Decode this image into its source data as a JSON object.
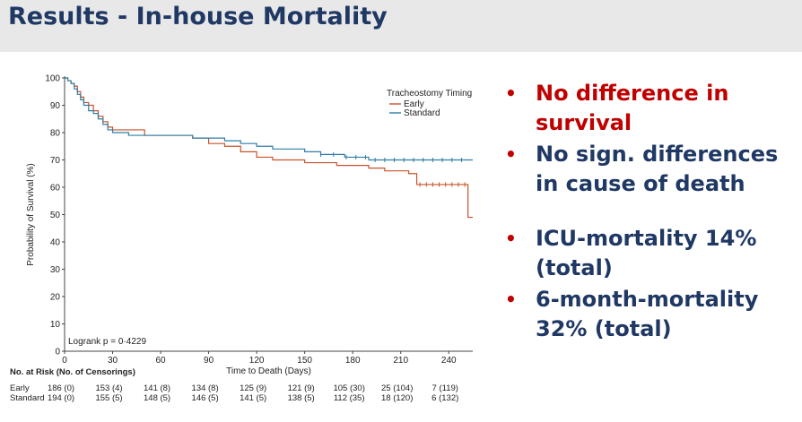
{
  "slide": {
    "title": "Results - In-house Mortality"
  },
  "bullets": [
    {
      "text": "No difference in survival",
      "color": "#c00000"
    },
    {
      "text": "No sign. differences in cause of death",
      "color": "#1f3864"
    },
    {
      "text": "ICU-mortality 14% (total)",
      "color": "#1f3864"
    },
    {
      "text": "6-month-mortality 32% (total)",
      "color": "#1f3864"
    }
  ],
  "chart_data": {
    "type": "line",
    "subtype": "kaplan-meier",
    "title": "",
    "xlabel": "Time to Death (Days)",
    "ylabel": "Probability of Survival (%)",
    "xlim": [
      0,
      255
    ],
    "ylim": [
      0,
      100
    ],
    "x_ticks": [
      0,
      30,
      60,
      90,
      120,
      150,
      180,
      210,
      240
    ],
    "y_ticks": [
      0,
      10,
      20,
      30,
      40,
      50,
      60,
      70,
      80,
      90,
      100
    ],
    "legend": {
      "title": "Tracheostomy Timing",
      "placement": "top-right"
    },
    "annotation": "Logrank p = 0·4229",
    "series": [
      {
        "name": "Early",
        "color": "#c9522b",
        "points": [
          [
            0,
            100
          ],
          [
            2,
            99
          ],
          [
            4,
            98
          ],
          [
            6,
            97
          ],
          [
            8,
            95
          ],
          [
            10,
            93
          ],
          [
            12,
            91
          ],
          [
            15,
            90
          ],
          [
            18,
            88
          ],
          [
            21,
            86
          ],
          [
            24,
            84
          ],
          [
            27,
            82
          ],
          [
            30,
            81
          ],
          [
            40,
            81
          ],
          [
            50,
            79
          ],
          [
            60,
            79
          ],
          [
            70,
            79
          ],
          [
            80,
            78
          ],
          [
            90,
            76
          ],
          [
            100,
            75
          ],
          [
            110,
            73
          ],
          [
            120,
            71
          ],
          [
            130,
            70
          ],
          [
            150,
            69
          ],
          [
            170,
            68
          ],
          [
            190,
            67
          ],
          [
            200,
            66
          ],
          [
            210,
            66
          ],
          [
            215,
            65
          ],
          [
            220,
            61
          ],
          [
            230,
            61
          ],
          [
            252,
            61
          ],
          [
            252,
            49
          ],
          [
            255,
            49
          ]
        ],
        "censor_x": [
          222,
          226,
          230,
          234,
          238,
          242,
          246,
          250
        ]
      },
      {
        "name": "Standard",
        "color": "#2e7ea6",
        "points": [
          [
            0,
            100
          ],
          [
            2,
            99
          ],
          [
            4,
            98
          ],
          [
            6,
            96
          ],
          [
            8,
            94
          ],
          [
            10,
            92
          ],
          [
            12,
            90
          ],
          [
            15,
            88
          ],
          [
            18,
            87
          ],
          [
            21,
            85
          ],
          [
            24,
            83
          ],
          [
            27,
            81
          ],
          [
            30,
            80
          ],
          [
            40,
            79
          ],
          [
            50,
            79
          ],
          [
            60,
            79
          ],
          [
            70,
            79
          ],
          [
            80,
            78
          ],
          [
            90,
            78
          ],
          [
            100,
            77
          ],
          [
            110,
            76
          ],
          [
            120,
            75
          ],
          [
            130,
            74
          ],
          [
            150,
            73
          ],
          [
            160,
            72
          ],
          [
            175,
            71
          ],
          [
            180,
            71
          ],
          [
            190,
            70
          ],
          [
            210,
            70
          ],
          [
            230,
            70
          ],
          [
            255,
            70
          ]
        ],
        "censor_x": [
          160,
          168,
          176,
          182,
          188,
          194,
          200,
          206,
          212,
          218,
          224,
          230,
          236,
          242,
          248
        ]
      }
    ],
    "risk_table": {
      "header": "No. at Risk (No. of Censorings)",
      "rows": [
        {
          "label": "Early",
          "values": [
            "186 (0)",
            "153 (4)",
            "141 (8)",
            "134 (8)",
            "125 (9)",
            "121 (9)",
            "105 (30)",
            "25 (104)",
            "7 (119)"
          ]
        },
        {
          "label": "Standard",
          "values": [
            "194 (0)",
            "155 (5)",
            "148 (5)",
            "146 (5)",
            "141 (5)",
            "138 (5)",
            "112 (35)",
            "18 (120)",
            "6 (132)"
          ]
        }
      ]
    }
  }
}
